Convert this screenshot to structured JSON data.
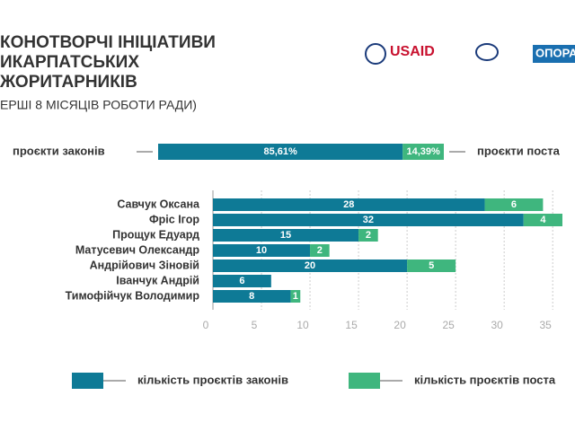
{
  "header": {
    "title_lines": [
      "КОНОТВОРЧІ ІНІЦІАТИВИ",
      "ИКАРПАТСЬКИХ",
      "ЖОРИТАРНИКІВ"
    ],
    "subtitle": "ЕРШІ 8 МІСЯЦІВ РОБОТИ РАДИ)"
  },
  "logos": [
    "USAID",
    "ОПОРА"
  ],
  "chart_data": [
    {
      "type": "bar",
      "orientation": "horizontal",
      "stacked": true,
      "xlim": [
        0,
        100
      ],
      "series": [
        {
          "name": "проєкти законів",
          "color": "#0e7a96",
          "values": [
            85.61
          ],
          "value_labels": [
            "85,61%"
          ]
        },
        {
          "name": "проєкти поста",
          "color": "#3fb67e",
          "values": [
            14.39
          ],
          "value_labels": [
            "14,39%"
          ]
        }
      ]
    },
    {
      "type": "bar",
      "orientation": "horizontal",
      "stacked": true,
      "categories": [
        "Савчук Оксана",
        "Фріс Ігор",
        "Прощук Едуард",
        "Матусевич Олександр",
        "Андрійович Зіновій",
        "Іванчук Андрій",
        "Тимофійчук Володимир"
      ],
      "xlim": [
        0,
        36
      ],
      "xticks": [
        0,
        5,
        10,
        15,
        20,
        25,
        30,
        35
      ],
      "grid": true,
      "series": [
        {
          "name": "кількість проєктів законів",
          "color": "#0e7a96",
          "values": [
            28,
            32,
            15,
            10,
            20,
            6,
            8
          ]
        },
        {
          "name": "кількість проєктів поста",
          "color": "#3fb67e",
          "values": [
            6,
            4,
            2,
            2,
            5,
            null,
            1
          ]
        }
      ]
    }
  ]
}
